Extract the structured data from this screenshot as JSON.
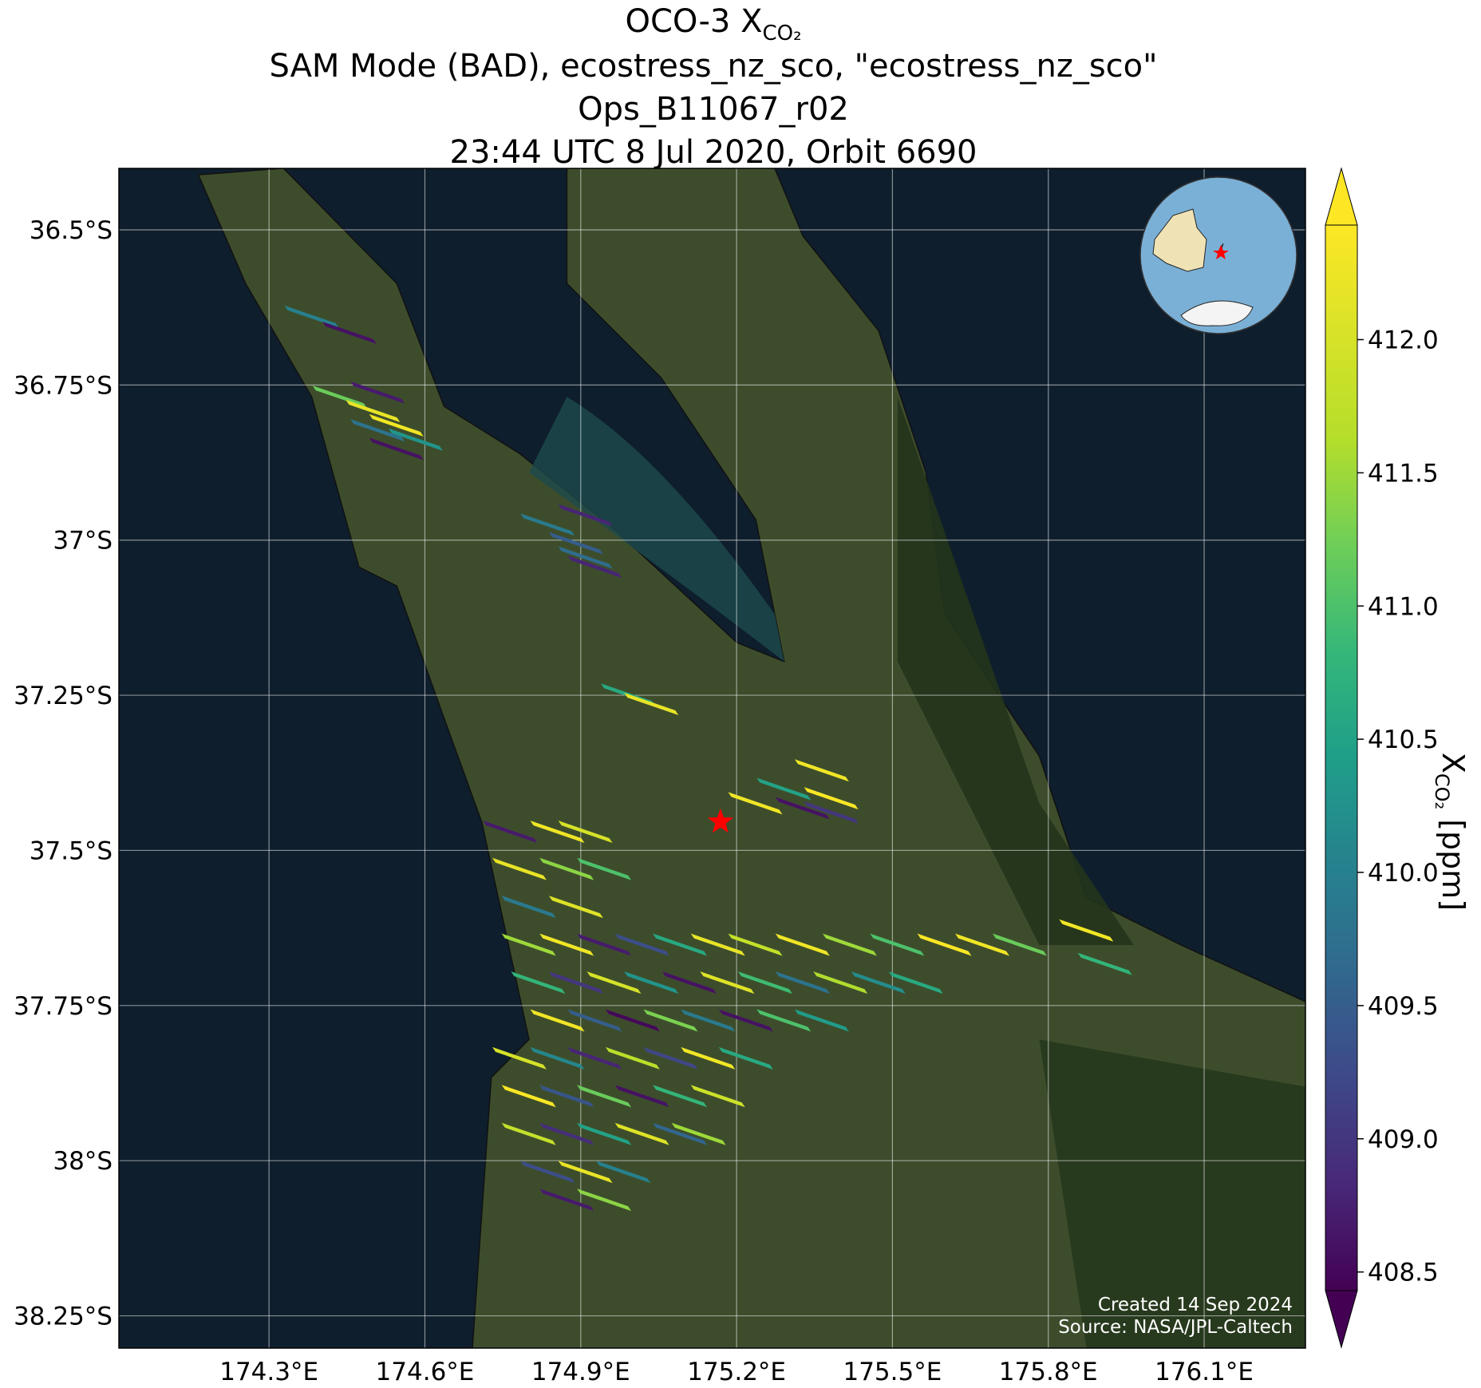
{
  "chart_data": {
    "type": "map",
    "title": {
      "text": "OCO-3 X",
      "subscript": "CO₂"
    },
    "subtitle": [
      "SAM Mode (BAD), ecostress_nz_sco, \"ecostress_nz_sco\"",
      "Ops_B11067_r02",
      "23:44 UTC 8 Jul 2020, Orbit 6690"
    ],
    "xlim": [
      174.011,
      176.295
    ],
    "ylim": [
      -38.302,
      -36.401
    ],
    "xticks": [
      {
        "value": 174.3,
        "label": "174.3°E"
      },
      {
        "value": 174.6,
        "label": "174.6°E"
      },
      {
        "value": 174.9,
        "label": "174.9°E"
      },
      {
        "value": 175.2,
        "label": "175.2°E"
      },
      {
        "value": 175.5,
        "label": "175.5°E"
      },
      {
        "value": 175.8,
        "label": "175.8°E"
      },
      {
        "value": 176.1,
        "label": "176.1°E"
      }
    ],
    "yticks": [
      {
        "value": -36.5,
        "label": "36.5°S"
      },
      {
        "value": -36.75,
        "label": "36.75°S"
      },
      {
        "value": -37,
        "label": "37°S"
      },
      {
        "value": -37.25,
        "label": "37.25°S"
      },
      {
        "value": -37.5,
        "label": "37.5°S"
      },
      {
        "value": -37.75,
        "label": "37.75°S"
      },
      {
        "value": -38,
        "label": "38°S"
      },
      {
        "value": -38.25,
        "label": "38.25°S"
      }
    ],
    "grid": true,
    "colormap": "viridis",
    "clim": [
      408.43,
      412.43
    ],
    "colorbar_ticks": [
      408.5,
      {
        "value": 409,
        "label": "409.0"
      },
      409.5,
      {
        "value": 410,
        "label": "410.0"
      },
      410.5,
      {
        "value": 411,
        "label": "411.0"
      },
      411.5,
      {
        "value": 412,
        "label": "412.0"
      }
    ],
    "colorbar_label": {
      "text": "X",
      "subscript": "CO₂",
      "unit": "[ppm]"
    },
    "target": {
      "lon": 175.169,
      "lat": -37.454,
      "color": "#ff0000"
    },
    "soundings": {
      "lon": [
        174.382,
        174.455,
        174.509,
        174.436,
        174.5,
        174.545,
        174.509,
        174.582,
        174.545,
        174.836,
        174.909,
        174.891,
        174.927,
        174.909,
        174.991,
        175.036,
        175.364,
        175.382,
        175.291,
        175.327,
        175.236,
        175.382,
        174.764,
        174.855,
        174.909,
        174.782,
        174.873,
        174.945,
        174.8,
        174.891,
        174.8,
        174.873,
        174.945,
        175.018,
        175.091,
        175.164,
        175.236,
        175.327,
        175.418,
        175.509,
        175.6,
        175.673,
        175.745,
        174.818,
        174.891,
        174.964,
        175.036,
        175.109,
        175.182,
        175.255,
        175.327,
        175.4,
        175.473,
        175.545,
        174.855,
        174.927,
        175.0,
        175.073,
        175.145,
        175.218,
        175.291,
        175.364,
        174.782,
        174.855,
        174.927,
        175.0,
        175.073,
        175.145,
        175.218,
        174.8,
        174.873,
        174.945,
        175.018,
        175.091,
        175.164,
        174.8,
        174.873,
        174.945,
        175.018,
        175.091,
        175.127,
        174.836,
        174.909,
        174.982,
        174.873,
        174.945,
        175.873,
        175.909
      ],
      "lat": [
        -36.64,
        -36.666,
        -36.762,
        -36.769,
        -36.792,
        -36.815,
        -36.823,
        -36.838,
        -36.853,
        -36.975,
        -36.96,
        -37.005,
        -37.043,
        -37.028,
        -37.249,
        -37.264,
        -37.371,
        -37.416,
        -37.401,
        -37.432,
        -37.424,
        -37.439,
        -37.47,
        -37.47,
        -37.47,
        -37.53,
        -37.53,
        -37.53,
        -37.591,
        -37.591,
        -37.652,
        -37.652,
        -37.652,
        -37.652,
        -37.652,
        -37.652,
        -37.652,
        -37.652,
        -37.652,
        -37.652,
        -37.652,
        -37.652,
        -37.652,
        -37.713,
        -37.713,
        -37.713,
        -37.713,
        -37.713,
        -37.713,
        -37.713,
        -37.713,
        -37.713,
        -37.713,
        -37.713,
        -37.774,
        -37.774,
        -37.774,
        -37.774,
        -37.774,
        -37.774,
        -37.774,
        -37.774,
        -37.835,
        -37.835,
        -37.835,
        -37.835,
        -37.835,
        -37.835,
        -37.835,
        -37.896,
        -37.896,
        -37.896,
        -37.896,
        -37.896,
        -37.896,
        -37.957,
        -37.957,
        -37.957,
        -37.957,
        -37.957,
        -37.957,
        -38.018,
        -38.018,
        -38.018,
        -38.063,
        -38.063,
        -37.629,
        -37.683
      ],
      "xco2": [
        410.0,
        408.6,
        408.7,
        411.2,
        412.2,
        412.3,
        409.8,
        410.3,
        408.6,
        409.9,
        408.8,
        409.5,
        408.8,
        409.7,
        410.6,
        412.2,
        412.3,
        412.4,
        410.5,
        408.6,
        412.3,
        409.0,
        408.7,
        412.3,
        412.0,
        412.2,
        411.4,
        411.0,
        409.9,
        412.1,
        411.5,
        412.3,
        408.7,
        409.3,
        410.6,
        412.2,
        411.8,
        412.3,
        411.5,
        411.0,
        412.4,
        412.3,
        411.2,
        410.8,
        409.0,
        412.0,
        410.3,
        408.6,
        412.1,
        410.9,
        409.8,
        411.6,
        410.2,
        410.6,
        412.3,
        409.5,
        408.5,
        411.3,
        409.9,
        408.6,
        411.0,
        410.4,
        412.0,
        410.1,
        408.8,
        411.7,
        409.2,
        412.3,
        410.6,
        412.4,
        409.4,
        411.2,
        408.6,
        410.8,
        411.9,
        411.8,
        408.9,
        410.5,
        412.1,
        409.6,
        411.5,
        409.3,
        412.2,
        410.0,
        408.7,
        411.4,
        412.3,
        410.8
      ]
    },
    "footnotes": [
      "Created 14 Sep 2024",
      "Source: NASA/JPL-Caltech"
    ]
  }
}
